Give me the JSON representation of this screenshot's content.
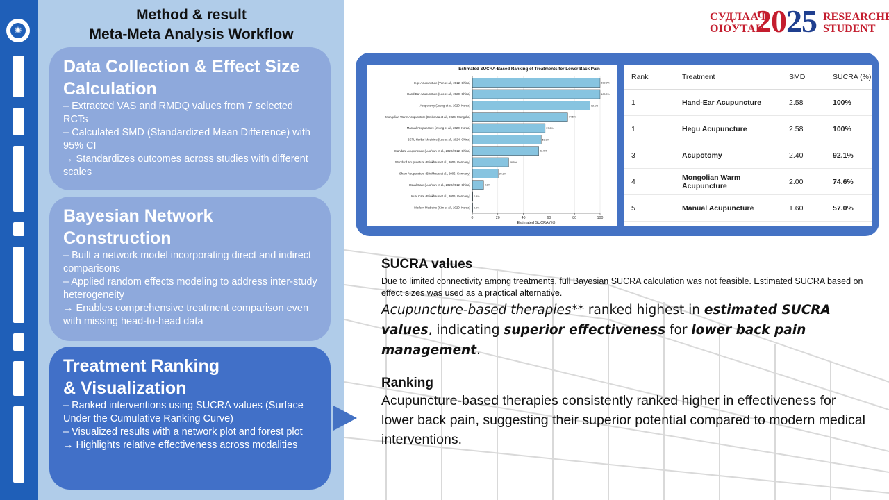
{
  "left_panel": {
    "title_line1": "Method & result",
    "title_line2": "Meta-Meta Analysis Workflow",
    "cards": [
      {
        "heading": "Data Collection & Effect Size Calculation",
        "lines": [
          "– Extracted VAS and RMDQ values from 7 selected RCTs",
          "– Calculated SMD (Standardized Mean Difference) with 95% CI",
          "→ Standardizes outcomes across studies with different scales"
        ]
      },
      {
        "heading": "Bayesian Network Construction",
        "lines": [
          "– Built a network model incorporating direct and indirect comparisons",
          "– Applied random effects modeling to address inter-study heterogeneity",
          "→ Enables comprehensive treatment comparison even with missing head-to-head data"
        ]
      },
      {
        "heading_line1": "Treatment Ranking",
        "heading_line2": "& Visualization",
        "lines": [
          "– Ranked interventions using SUCRA values (Surface Under the Cumulative Ranking Curve)",
          "– Visualized results with a network plot and forest plot",
          "→ Highlights relative effectiveness across modalities"
        ]
      }
    ]
  },
  "brand": {
    "mn_line1": "СУДЛААЧ",
    "mn_line2": "ОЮУТАН",
    "year_a": "20",
    "year_b": "25",
    "en_line1": "RESEARCHER",
    "en_line2": "STUDENT"
  },
  "chart_data": {
    "type": "bar",
    "orientation": "horizontal",
    "title": "Estimated SUCRA-Based Ranking of Treatments for Lower Back Pain",
    "xlabel": "Estimated SUCRA (%)",
    "ylabel": "",
    "xlim": [
      0,
      100
    ],
    "xticks": [
      "0",
      "20",
      "40",
      "60",
      "80",
      "100"
    ],
    "bar_color": "#87c4e0",
    "categories": [
      "Hegu Acupuncture (Yun et al., 2012, China)",
      "Hand-Ear Acupuncture (Luo et al., 2020, China)",
      "Acupotomy (Jeong et al. 2020, Korea)",
      "Mongolian Warm Acupuncture (Enkhmaa et al., 2024, Mongolia)",
      "Manual Acupuncture (Jeong et al., 2020, Korea)",
      "BSTL Herbal Medicine (Lee et al., 2024, China)",
      "Standard Acupuncture (Luo/Yun et al., 2020/2012, China)",
      "Standard Acupuncture (Brinkhaus et al., 2006, Germany)",
      "Sham Acupuncture (Brinkhaus et al., 2006, Germany)",
      "Usual Care (Luo/Yun et al., 2020/2012, China)",
      "Usual Care (Brinkhaus et al., 2006, Germany)",
      "Modern Medicine (Kim et al., 2020, Korea)"
    ],
    "values": [
      100,
      100,
      92.1,
      74.6,
      57.0,
      53.9,
      52.0,
      28.5,
      20.2,
      8.8,
      0.4,
      0.0
    ],
    "value_labels": [
      "100.0%",
      "100.0%",
      "92.1%",
      "74.6%",
      "57.0%",
      "53.9%",
      "52.0%",
      "28.5%",
      "20.2%",
      "8.8%",
      "0.4%",
      "0.0%"
    ]
  },
  "ranking_table": {
    "headers": [
      "Rank",
      "Treatment",
      "SMD",
      "SUCRA (%)"
    ],
    "rows": [
      [
        "1",
        "Hand-Ear Acupuncture",
        "2.58",
        "100%"
      ],
      [
        "1",
        "Hegu Acupuncture",
        "2.58",
        "100%"
      ],
      [
        "3",
        "Acupotomy",
        "2.40",
        "92.1%"
      ],
      [
        "4",
        "Mongolian Warm Acupuncture",
        "2.00",
        "74.6%"
      ],
      [
        "5",
        "Manual Acupuncture",
        "1.60",
        "57.0%"
      ]
    ]
  },
  "right_text": {
    "sucra_heading": "SUCRA values",
    "sucra_note": "Due to limited connectivity among treatments, full Bayesian SUCRA calculation was not feasible. Estimated SUCRA based on effect sizes was used as a practical alternative.",
    "sucra_p_1": "Acupuncture-based therapies",
    "sucra_p_2": "** ranked highest in ",
    "sucra_p_3": "estimated SUCRA values",
    "sucra_p_4": ", indicating ",
    "sucra_p_5": "superior effectiveness",
    "sucra_p_6": " for ",
    "sucra_p_7": "lower back pain management",
    "sucra_p_8": ".",
    "ranking_heading": "Ranking",
    "ranking_text": "Acupuncture-based therapies consistently ranked higher in effectiveness for lower back pain, suggesting their superior potential compared to modern medical interventions."
  },
  "colors": {
    "strip": "#1f5fb8",
    "left_panel_bg": "#b0cce9",
    "card_light": "#8ea9dc",
    "card_dark": "#4170c8",
    "frame": "#4472c4",
    "brand_red": "#c41d2e",
    "brand_blue": "#1f3f8f"
  }
}
